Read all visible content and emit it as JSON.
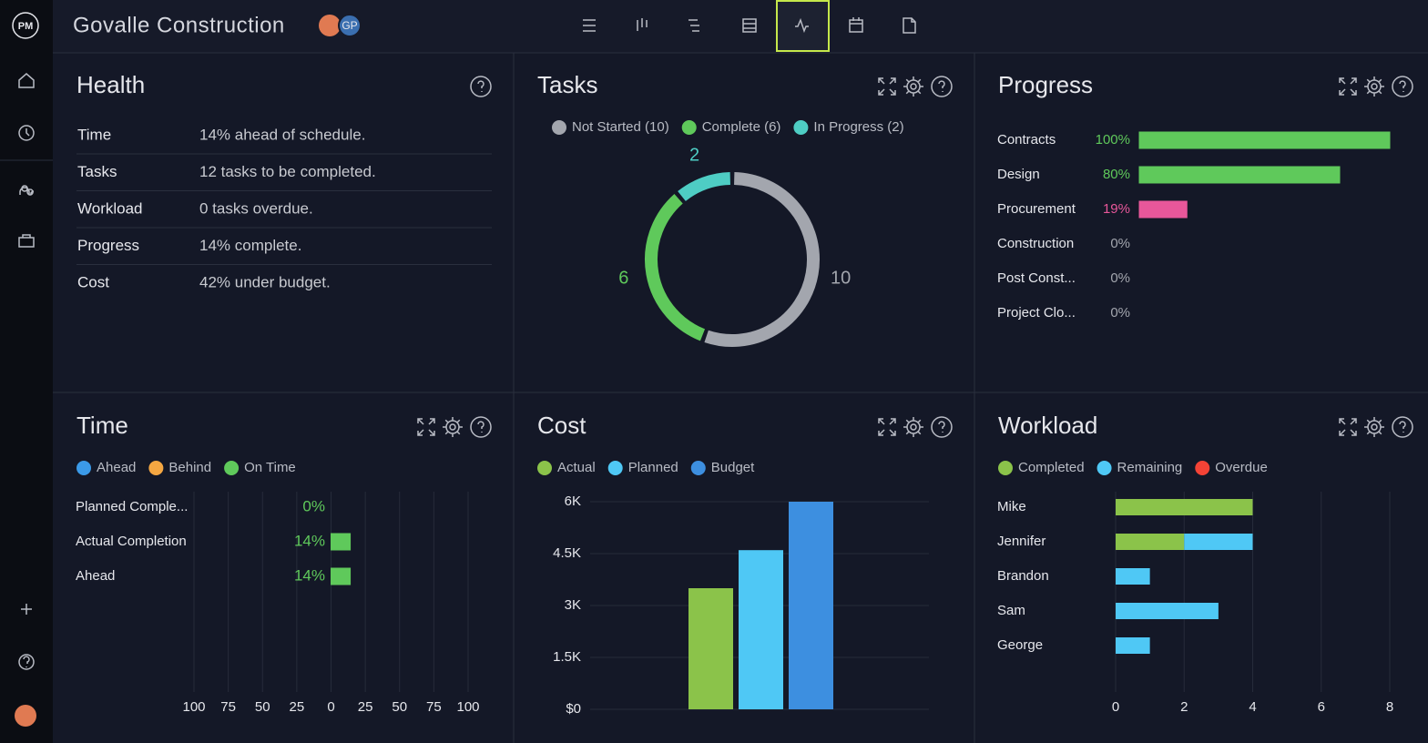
{
  "header": {
    "logo": "PM",
    "title": "Govalle Construction",
    "avatar": "GP"
  },
  "health": {
    "title": "Health",
    "rows": [
      {
        "label": "Time",
        "value": "14% ahead of schedule."
      },
      {
        "label": "Tasks",
        "value": "12 tasks to be completed."
      },
      {
        "label": "Workload",
        "value": "0 tasks overdue."
      },
      {
        "label": "Progress",
        "value": "14% complete."
      },
      {
        "label": "Cost",
        "value": "42% under budget."
      }
    ]
  },
  "tasks": {
    "title": "Tasks",
    "type": "pie",
    "labels": [
      "Not Started (10)",
      "Complete (6)",
      "In Progress (2)"
    ],
    "values": [
      10,
      6,
      2
    ],
    "colors": [
      "#a3a6ae",
      "#5fc95b",
      "#4ecdc4"
    ]
  },
  "progress": {
    "title": "Progress",
    "type": "bar",
    "categories": [
      "Contracts",
      "Design",
      "Procurement",
      "Construction",
      "Post Const...",
      "Project Clo..."
    ],
    "values": [
      100,
      80,
      19,
      0,
      0,
      0
    ],
    "value_labels": [
      "100%",
      "80%",
      "19%",
      "0%",
      "0%",
      "0%"
    ],
    "colors": [
      "#5fc95b",
      "#5fc95b",
      "#e8579a",
      "#a3a6ae",
      "#a3a6ae",
      "#a3a6ae"
    ],
    "xlim": [
      0,
      100
    ]
  },
  "time": {
    "title": "Time",
    "type": "bar",
    "legend": [
      {
        "name": "Ahead",
        "color": "#3b9ae8"
      },
      {
        "name": "Behind",
        "color": "#f5a742"
      },
      {
        "name": "On Time",
        "color": "#5fc95b"
      }
    ],
    "categories": [
      "Planned Comple...",
      "Actual Completion",
      "Ahead"
    ],
    "values": [
      0,
      14,
      14
    ],
    "value_labels": [
      "0%",
      "14%",
      "14%"
    ],
    "color": "#5fc95b",
    "xlim": [
      -100,
      100
    ],
    "xticks": [
      {
        "value": -100,
        "label": "100"
      },
      {
        "value": -75,
        "label": "75"
      },
      {
        "value": -50,
        "label": "50"
      },
      {
        "value": -25,
        "label": "25"
      },
      0,
      25,
      50,
      75,
      100
    ],
    "grid": true
  },
  "cost": {
    "title": "Cost",
    "type": "bar",
    "series": [
      {
        "name": "Actual",
        "color": "#8bc34a",
        "values": [
          3500
        ]
      },
      {
        "name": "Planned",
        "color": "#4fc8f5",
        "values": [
          4600
        ]
      },
      {
        "name": "Budget",
        "color": "#3d8fe0",
        "values": [
          6000
        ]
      }
    ],
    "ylim": [
      0,
      6000
    ],
    "yticks": [
      {
        "value": 0,
        "label": "$0"
      },
      {
        "value": 1500,
        "label": "1.5K"
      },
      {
        "value": 3000,
        "label": "3K"
      },
      {
        "value": 4500,
        "label": "4.5K"
      },
      {
        "value": 6000,
        "label": "6K"
      }
    ],
    "grid": true
  },
  "workload": {
    "title": "Workload",
    "type": "stacked_bar",
    "categories": [
      "Mike",
      "Jennifer",
      "Brandon",
      "Sam",
      "George"
    ],
    "series": [
      {
        "name": "Completed",
        "color": "#8bc34a",
        "values": [
          4,
          2,
          0,
          0,
          0
        ]
      },
      {
        "name": "Remaining",
        "color": "#4fc8f5",
        "values": [
          0,
          2,
          1,
          3,
          1
        ]
      },
      {
        "name": "Overdue",
        "color": "#f44336",
        "values": [
          0,
          0,
          0,
          0,
          0
        ]
      }
    ],
    "xlim": [
      0,
      8
    ],
    "xticks": [
      0,
      2,
      4,
      6,
      8
    ],
    "grid": true
  }
}
